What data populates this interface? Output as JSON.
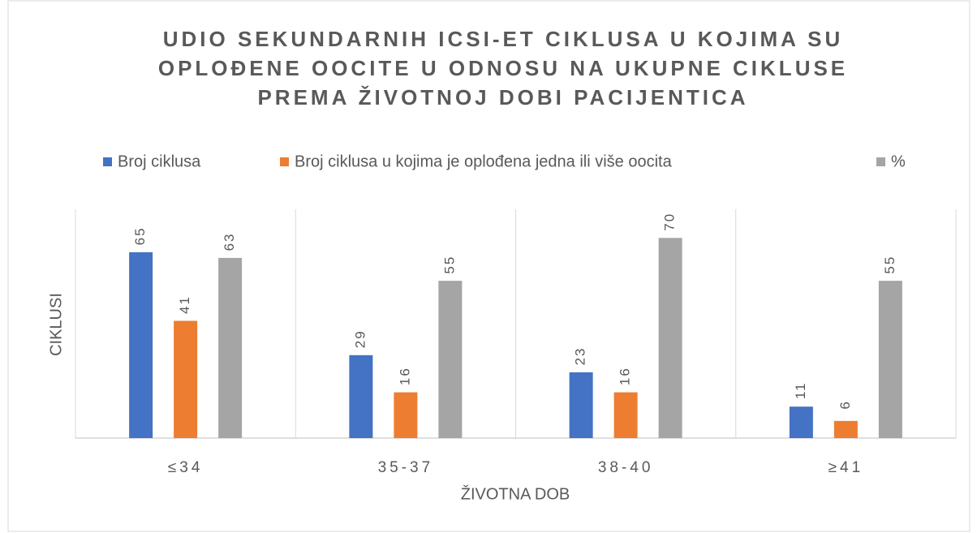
{
  "chart_data": {
    "type": "bar",
    "title": [
      "UDIO SEKUNDARNIH ICSI-ET CIKLUSA U KOJIMA SU",
      "OPLOĐENE OOCITE U ODNOSU NA UKUPNE CIKLUSE",
      "PREMA ŽIVOTNOJ DOBI PACIJENTICA"
    ],
    "x_label": "ŽIVOTNA DOB",
    "y_label": "CIKLUSI",
    "categories": [
      "≤34",
      "35-37",
      "38-40",
      "≥41"
    ],
    "series": [
      {
        "name": "Broj ciklusa",
        "color": "#4472c4",
        "values": [
          65,
          29,
          23,
          11
        ]
      },
      {
        "name": "Broj ciklusa u kojima je oplođena jedna ili više oocita",
        "color": "#ed7d31",
        "values": [
          41,
          16,
          16,
          6
        ]
      },
      {
        "name": "%",
        "color": "#a5a5a5",
        "values": [
          63,
          55,
          70,
          55
        ]
      }
    ],
    "ylim": [
      0,
      80
    ],
    "grid": false,
    "legend": "top"
  }
}
